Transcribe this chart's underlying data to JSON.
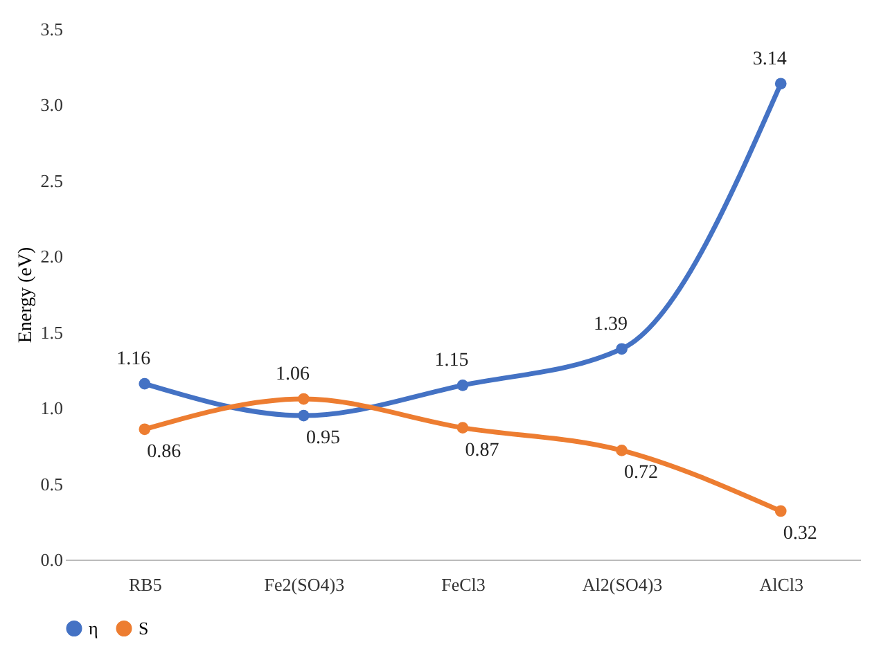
{
  "chart_data": {
    "type": "line",
    "ylabel": "Energy (eV)",
    "categories": [
      "RB5",
      "Fe2(SO4)3",
      "FeCl3",
      "Al2(SO4)3",
      "AlCl3"
    ],
    "series": [
      {
        "name": "η",
        "color": "#4472c4",
        "values": [
          1.16,
          0.95,
          1.15,
          1.39,
          3.14
        ]
      },
      {
        "name": "S",
        "color": "#ed7d31",
        "values": [
          0.86,
          1.06,
          0.87,
          0.72,
          0.32
        ]
      }
    ],
    "ylim": [
      0,
      3.5
    ],
    "yticks": [
      {
        "value": 0,
        "label": "0.0"
      },
      {
        "value": 0.5,
        "label": "0.5"
      },
      {
        "value": 1,
        "label": "1.0"
      },
      {
        "value": 1.5,
        "label": "1.5"
      },
      {
        "value": 2,
        "label": "2.0"
      },
      {
        "value": 2.5,
        "label": "2.5"
      },
      {
        "value": 3,
        "label": "3.0"
      },
      {
        "value": 3.5,
        "label": "3.5"
      }
    ],
    "grid": false,
    "legend": "bottom",
    "marker": "circle",
    "line_style": "solid",
    "data_labels": true
  }
}
